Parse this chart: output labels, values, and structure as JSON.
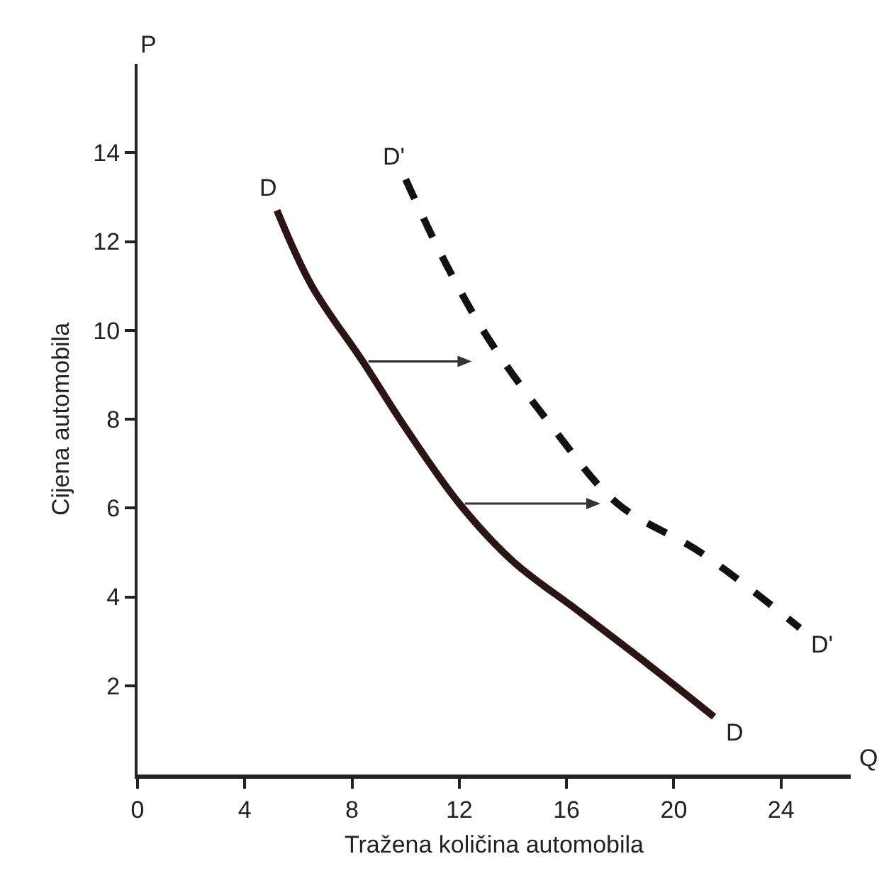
{
  "chart_data": {
    "type": "line",
    "xlabel": "Tražena količina automobila",
    "ylabel": "Cijena automobila",
    "annotations": [
      "P",
      "Q"
    ],
    "series": [
      {
        "name": "D",
        "color": "#2a1414",
        "line_style": "solid",
        "x": [
          5.2,
          6.5,
          8.4,
          10,
          12,
          14,
          16.4,
          19,
          21.5
        ],
        "values": [
          12.7,
          11,
          9.3,
          7.8,
          6.1,
          4.8,
          3.7,
          2.5,
          1.3
        ]
      },
      {
        "name": "D'",
        "color": "#111111",
        "line_style": "dashed",
        "x": [
          10,
          11.5,
          13.1,
          15.5,
          17.9,
          21,
          24.7
        ],
        "values": [
          13.4,
          11.5,
          9.8,
          7.8,
          6.1,
          5.0,
          3.3
        ]
      }
    ],
    "xlim": [
      0,
      26.6
    ],
    "xticks": [
      0,
      4,
      8,
      12,
      16,
      20,
      24
    ],
    "ylim": [
      0,
      16
    ],
    "yticks": [
      2,
      4,
      6,
      8,
      10,
      12,
      14
    ],
    "grid": false,
    "legend": false,
    "marker": "none"
  }
}
